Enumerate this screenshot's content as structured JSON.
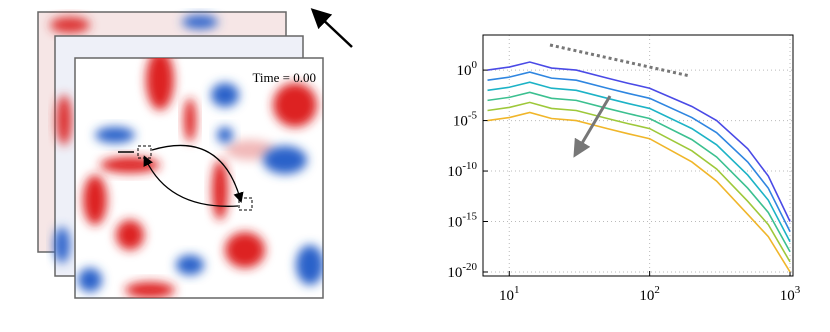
{
  "vorticity_panel": {
    "label": "Time = 0.00"
  },
  "chart_data": {
    "type": "line",
    "log_x": true,
    "log_y": true,
    "grid": true,
    "x": [
      7,
      10,
      14,
      20,
      30,
      50,
      70,
      100,
      200,
      300,
      500,
      700,
      1000
    ],
    "series": [
      {
        "color": "#4a4ae6",
        "values": [
          1,
          2,
          6.3,
          1.6,
          1,
          0.16,
          0.05,
          0.016,
          0.00025,
          1e-05,
          1.6e-08,
          3.2e-11,
          1e-15
        ]
      },
      {
        "color": "#2f86e0",
        "values": [
          0.1,
          0.2,
          0.63,
          0.16,
          0.1,
          0.016,
          0.005,
          0.0016,
          2e-05,
          6.3e-07,
          7.9e-10,
          2e-12,
          1e-16
        ]
      },
      {
        "color": "#1db3c6",
        "values": [
          0.01,
          0.02,
          0.063,
          0.016,
          0.01,
          0.0016,
          0.0005,
          0.00016,
          1.6e-06,
          4e-08,
          4e-11,
          1.3e-13,
          1e-17
        ]
      },
      {
        "color": "#3cc090",
        "values": [
          0.001,
          0.002,
          0.0063,
          0.0016,
          0.001,
          0.00016,
          5e-05,
          1.6e-05,
          1.3e-07,
          2.5e-09,
          2e-12,
          7.9e-15,
          1e-18
        ]
      },
      {
        "color": "#9ec83a",
        "values": [
          0.0001,
          0.0002,
          0.00063,
          0.00016,
          0.0001,
          1.6e-05,
          5e-06,
          1.6e-06,
          1e-08,
          1.6e-10,
          1e-13,
          5e-16,
          1e-19
        ]
      },
      {
        "color": "#f0b62a",
        "values": [
          1e-05,
          2e-05,
          6.3e-05,
          1.6e-05,
          1e-05,
          1.6e-06,
          5e-07,
          1.6e-07,
          7.9e-10,
          1e-11,
          5e-15,
          3.2e-17,
          1e-20
        ]
      }
    ],
    "xlim": [
      6.5,
      1050
    ],
    "ylim": [
      4e-21,
      3000
    ],
    "xticks": [
      {
        "value": 10,
        "label": "10^1"
      },
      {
        "value": 100,
        "label": "10^2"
      },
      {
        "value": 1000,
        "label": "10^3"
      }
    ],
    "yticks": [
      {
        "value": 1,
        "label": "10^0"
      },
      {
        "value": 1e-05,
        "label": "10^-5"
      },
      {
        "value": 1e-10,
        "label": "10^-10"
      },
      {
        "value": 1e-15,
        "label": "10^-15"
      },
      {
        "value": 1e-20,
        "label": "10^-20"
      }
    ]
  }
}
